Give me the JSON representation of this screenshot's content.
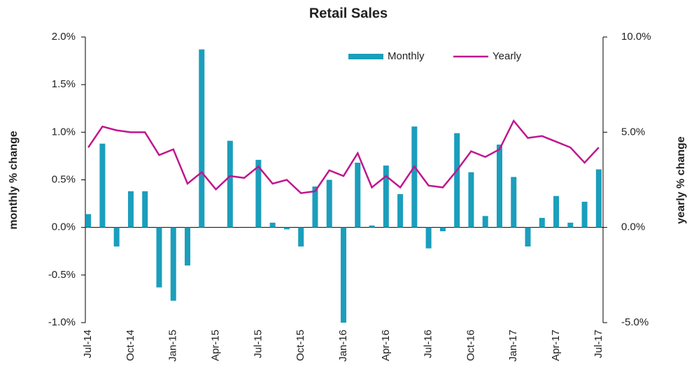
{
  "chart_data": {
    "type": "bar_line",
    "title": "Retail Sales",
    "y_label": "monthly % change",
    "y2_label": "yearly % change",
    "categories": [
      "Jul-14",
      null,
      null,
      "Oct-14",
      null,
      null,
      "Jan-15",
      null,
      null,
      "Apr-15",
      null,
      null,
      "Jul-15",
      null,
      null,
      "Oct-15",
      null,
      null,
      "Jan-16",
      null,
      null,
      "Apr-16",
      null,
      null,
      "Jul-16",
      null,
      null,
      "Oct-16",
      null,
      null,
      "Jan-17",
      null,
      null,
      "Apr-17",
      null,
      null,
      "Jul-17"
    ],
    "series": [
      {
        "name": "Monthly",
        "color": "#1b9ebc",
        "values": [
          0.14,
          0.88,
          -0.2,
          0.38,
          0.38,
          -0.63,
          -0.77,
          -0.4,
          1.87,
          0,
          0.91,
          0,
          0.71,
          0.05,
          -0.02,
          -0.2,
          0.43,
          0.5,
          -1.0,
          0.68,
          0.02,
          0.65,
          0.35,
          1.06,
          -0.22,
          -0.04,
          0.99,
          0.58,
          0.12,
          0.87,
          0.53,
          -0.2,
          0.1,
          0.33,
          0.05,
          0.27,
          0.61
        ]
      },
      {
        "name": "Yearly",
        "color": "#c0168e",
        "axis": "y2",
        "values": [
          4.2,
          5.3,
          5.1,
          5.0,
          5.0,
          3.8,
          4.1,
          2.3,
          2.9,
          2.0,
          2.7,
          2.6,
          3.2,
          2.3,
          2.5,
          1.8,
          1.9,
          3.0,
          2.7,
          3.9,
          2.1,
          2.7,
          2.1,
          3.2,
          2.2,
          2.1,
          3.0,
          4.0,
          3.7,
          4.1,
          5.6,
          4.7,
          4.8,
          4.5,
          4.2,
          3.4,
          4.2
        ]
      }
    ],
    "ylim": [
      -1,
      2
    ],
    "yticks": [
      {
        "value": -1,
        "label": "-1.0%"
      },
      {
        "value": -0.5,
        "label": "-0.5%"
      },
      {
        "value": 0,
        "label": "0.0%"
      },
      {
        "value": 0.5,
        "label": "0.5%"
      },
      {
        "value": 1,
        "label": "1.0%"
      },
      {
        "value": 1.5,
        "label": "1.5%"
      },
      {
        "value": 2,
        "label": "2.0%"
      }
    ],
    "y2lim": [
      -5,
      10
    ],
    "y2ticks": [
      {
        "value": -5,
        "label": "-5.0%"
      },
      {
        "value": 0,
        "label": "0.0%"
      },
      {
        "value": 5,
        "label": "5.0%"
      },
      {
        "value": 10,
        "label": "10.0%"
      }
    ],
    "legend": "top-right"
  }
}
